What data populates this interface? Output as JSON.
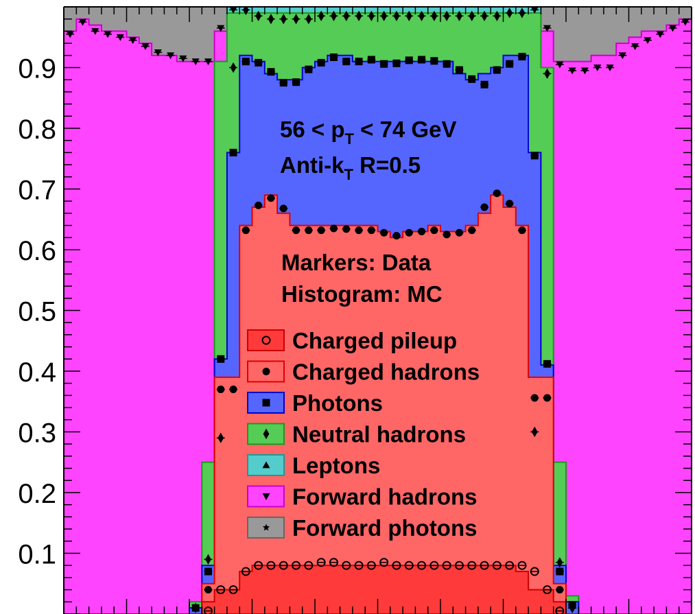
{
  "chart_data": {
    "type": "area",
    "bins": 50,
    "ylim": [
      0,
      1
    ],
    "y_ticks": [
      "0.1",
      "0.2",
      "0.3",
      "0.4",
      "0.5",
      "0.6",
      "0.7",
      "0.8",
      "0.9"
    ],
    "y_tick_values": [
      0.1,
      0.2,
      0.3,
      0.4,
      0.5,
      0.6,
      0.7,
      0.8,
      0.9
    ],
    "annotations": {
      "pt_main": "56 < p",
      "pt_sub": "T",
      "pt_rest": " < 74 GeV",
      "algo_main": "Anti-k",
      "algo_sub": "T",
      "algo_rest": " R=0.5",
      "markers": "Markers: Data",
      "histogram": "Histogram: MC"
    },
    "legend": [
      {
        "label": "Charged pileup",
        "color": "#ff3a3a",
        "edge": "#cc0000",
        "marker": "circle-open"
      },
      {
        "label": "Charged hadrons",
        "color": "#ff6666",
        "edge": "#e00000",
        "marker": "circle"
      },
      {
        "label": "Photons",
        "color": "#5566ff",
        "edge": "#0000cc",
        "marker": "square"
      },
      {
        "label": "Neutral hadrons",
        "color": "#55cc55",
        "edge": "#1a9a1a",
        "marker": "diamond"
      },
      {
        "label": "Leptons",
        "color": "#55cccc",
        "edge": "#1a9a9a",
        "marker": "triangle-up"
      },
      {
        "label": "Forward hadrons",
        "color": "#ff44ff",
        "edge": "#cc00cc",
        "marker": "triangle-down"
      },
      {
        "label": "Forward photons",
        "color": "#999999",
        "edge": "#666666",
        "marker": "star"
      }
    ],
    "stacks": {
      "charged_pileup": [
        0,
        0,
        0,
        0,
        0,
        0,
        0,
        0,
        0,
        0,
        0,
        0.02,
        0.04,
        0.04,
        0.07,
        0.08,
        0.08,
        0.08,
        0.08,
        0.08,
        0.08,
        0.08,
        0.08,
        0.08,
        0.08,
        0.08,
        0.08,
        0.08,
        0.08,
        0.08,
        0.08,
        0.08,
        0.08,
        0.08,
        0.08,
        0.08,
        0.07,
        0.04,
        0.04,
        0.02,
        0,
        0,
        0,
        0,
        0,
        0,
        0,
        0,
        0,
        0
      ],
      "charged_hadrons": [
        0,
        0,
        0,
        0,
        0,
        0,
        0,
        0,
        0,
        0,
        0,
        0.05,
        0.39,
        0.39,
        0.64,
        0.67,
        0.69,
        0.66,
        0.64,
        0.64,
        0.64,
        0.64,
        0.64,
        0.64,
        0.64,
        0.63,
        0.62,
        0.63,
        0.63,
        0.64,
        0.63,
        0.63,
        0.64,
        0.66,
        0.69,
        0.67,
        0.64,
        0.39,
        0.39,
        0.05,
        0,
        0,
        0,
        0,
        0,
        0,
        0,
        0,
        0,
        0
      ],
      "photons": [
        0,
        0,
        0,
        0,
        0,
        0,
        0,
        0,
        0,
        0,
        0.01,
        0.08,
        0.42,
        0.76,
        0.92,
        0.91,
        0.89,
        0.88,
        0.88,
        0.9,
        0.91,
        0.92,
        0.92,
        0.91,
        0.91,
        0.91,
        0.91,
        0.91,
        0.91,
        0.91,
        0.91,
        0.89,
        0.88,
        0.89,
        0.9,
        0.92,
        0.92,
        0.76,
        0.41,
        0.08,
        0.02,
        0,
        0,
        0,
        0,
        0,
        0,
        0,
        0,
        0
      ],
      "neutral_hadrons": [
        0,
        0,
        0,
        0,
        0,
        0,
        0,
        0,
        0,
        0,
        0.02,
        0.25,
        0.91,
        0.99,
        0.99,
        0.99,
        0.99,
        0.99,
        0.99,
        0.99,
        0.99,
        0.99,
        0.99,
        0.99,
        0.99,
        0.99,
        0.99,
        0.99,
        0.99,
        0.99,
        0.99,
        0.99,
        0.99,
        0.99,
        0.99,
        0.99,
        0.99,
        0.99,
        0.9,
        0.25,
        0.03,
        0,
        0,
        0,
        0,
        0,
        0,
        0,
        0,
        0
      ],
      "leptons": [
        0,
        0,
        0,
        0,
        0,
        0,
        0,
        0,
        0,
        0,
        0.02,
        0.25,
        0.91,
        1.0,
        1.0,
        1.0,
        1.0,
        1.0,
        1.0,
        1.0,
        1.0,
        1.0,
        1.0,
        1.0,
        1.0,
        1.0,
        1.0,
        1.0,
        1.0,
        1.0,
        1.0,
        1.0,
        1.0,
        1.0,
        1.0,
        1.0,
        1.0,
        1.0,
        0.9,
        0.25,
        0.03,
        0,
        0,
        0,
        0,
        0,
        0,
        0,
        0,
        0
      ],
      "forward_hadrons": [
        0.96,
        0.98,
        0.97,
        0.96,
        0.96,
        0.95,
        0.94,
        0.92,
        0.92,
        0.91,
        0.91,
        0.91,
        0.96,
        1.0,
        1.0,
        1.0,
        1.0,
        1.0,
        1.0,
        1.0,
        1.0,
        1.0,
        1.0,
        1.0,
        1.0,
        1.0,
        1.0,
        1.0,
        1.0,
        1.0,
        1.0,
        1.0,
        1.0,
        1.0,
        1.0,
        1.0,
        1.0,
        1.0,
        0.96,
        0.91,
        0.91,
        0.91,
        0.92,
        0.92,
        0.94,
        0.95,
        0.96,
        0.96,
        0.97,
        0.98
      ],
      "forward_photons": [
        1,
        1,
        1,
        1,
        1,
        1,
        1,
        1,
        1,
        1,
        1,
        1,
        1,
        1,
        1,
        1,
        1,
        1,
        1,
        1,
        1,
        1,
        1,
        1,
        1,
        1,
        1,
        1,
        1,
        1,
        1,
        1,
        1,
        1,
        1,
        1,
        1,
        1,
        1,
        1,
        1,
        1,
        1,
        1,
        1,
        1,
        1,
        1,
        1,
        1
      ]
    },
    "data_markers": {
      "charged_pileup": [
        null,
        null,
        null,
        null,
        null,
        null,
        null,
        null,
        null,
        null,
        null,
        0.005,
        0.04,
        0.04,
        0.07,
        0.08,
        0.08,
        0.08,
        0.08,
        0.08,
        0.085,
        0.085,
        0.08,
        0.08,
        0.08,
        0.085,
        0.08,
        0.08,
        0.08,
        0.08,
        0.08,
        0.08,
        0.08,
        0.08,
        0.08,
        0.08,
        0.08,
        0.07,
        0.04,
        0.005,
        null,
        null,
        null,
        null,
        null,
        null,
        null,
        null,
        null,
        null
      ],
      "charged_hadrons": [
        null,
        null,
        null,
        null,
        null,
        null,
        null,
        null,
        null,
        null,
        null,
        0.04,
        0.37,
        0.37,
        0.632,
        0.673,
        0.685,
        0.668,
        0.632,
        0.632,
        0.632,
        0.635,
        0.634,
        0.632,
        0.632,
        0.628,
        0.623,
        0.628,
        0.63,
        0.632,
        0.625,
        0.628,
        0.632,
        0.67,
        0.693,
        0.676,
        0.632,
        0.356,
        0.356,
        0.04,
        null,
        null,
        null,
        null,
        null,
        null,
        null,
        null,
        null,
        null
      ],
      "photons": [
        null,
        null,
        null,
        null,
        null,
        null,
        null,
        null,
        null,
        null,
        0.01,
        0.07,
        0.42,
        0.76,
        0.91,
        0.908,
        0.893,
        0.875,
        0.876,
        0.897,
        0.908,
        0.917,
        0.91,
        0.91,
        0.913,
        0.906,
        0.907,
        0.912,
        0.913,
        0.911,
        0.906,
        0.896,
        0.881,
        0.872,
        0.896,
        0.906,
        0.918,
        0.755,
        0.412,
        0.07,
        0.015,
        null,
        null,
        null,
        null,
        null,
        null,
        null,
        null,
        null
      ],
      "neutral_hadrons": [
        null,
        null,
        null,
        null,
        null,
        null,
        null,
        null,
        null,
        null,
        0.01,
        0.09,
        0.29,
        0.9,
        0.995,
        0.985,
        0.98,
        0.98,
        0.98,
        0.98,
        0.985,
        0.985,
        0.985,
        0.985,
        0.985,
        0.985,
        0.985,
        0.985,
        0.985,
        0.985,
        0.985,
        0.985,
        0.985,
        0.985,
        0.985,
        0.99,
        0.99,
        0.3,
        0.89,
        0.085,
        0.01,
        null,
        null,
        null,
        null,
        null,
        null,
        null,
        null,
        null
      ],
      "forward_hadrons": [
        0.955,
        0.975,
        0.96,
        0.955,
        0.95,
        0.945,
        0.935,
        0.925,
        0.92,
        0.915,
        0.91,
        0.91,
        0.965,
        0.995,
        null,
        null,
        null,
        null,
        null,
        null,
        null,
        null,
        null,
        null,
        null,
        null,
        null,
        null,
        null,
        null,
        null,
        null,
        null,
        null,
        null,
        null,
        null,
        0.995,
        0.965,
        0.905,
        0.895,
        0.895,
        0.9,
        0.9,
        0.92,
        0.935,
        0.945,
        0.955,
        0.965,
        0.975
      ]
    }
  }
}
